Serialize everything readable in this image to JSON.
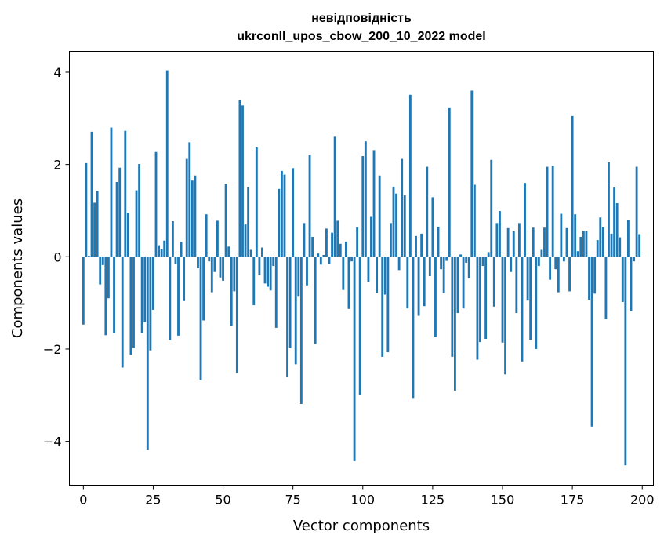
{
  "chart_data": {
    "type": "bar",
    "title_line1": "невідповідність",
    "title_line2": "ukrconll_upos_cbow_200_10_2022 model",
    "xlabel": "Vector components",
    "ylabel": "Components values",
    "xlim": [
      -5,
      204
    ],
    "ylim": [
      -4.95,
      4.45
    ],
    "xticks": [
      0,
      25,
      50,
      75,
      100,
      125,
      150,
      175,
      200
    ],
    "xtick_labels": [
      "0",
      "25",
      "50",
      "75",
      "100",
      "125",
      "150",
      "175",
      "200"
    ],
    "yticks": [
      -4,
      -2,
      0,
      2,
      4
    ],
    "ytick_labels": [
      "−4",
      "−2",
      "0",
      "2",
      "4"
    ],
    "bar_color": "#1f77b4",
    "x": [
      0,
      1,
      2,
      3,
      4,
      5,
      6,
      7,
      8,
      9,
      10,
      11,
      12,
      13,
      14,
      15,
      16,
      17,
      18,
      19,
      20,
      21,
      22,
      23,
      24,
      25,
      26,
      27,
      28,
      29,
      30,
      31,
      32,
      33,
      34,
      35,
      36,
      37,
      38,
      39,
      40,
      41,
      42,
      43,
      44,
      45,
      46,
      47,
      48,
      49,
      50,
      51,
      52,
      53,
      54,
      55,
      56,
      57,
      58,
      59,
      60,
      61,
      62,
      63,
      64,
      65,
      66,
      67,
      68,
      69,
      70,
      71,
      72,
      73,
      74,
      75,
      76,
      77,
      78,
      79,
      80,
      81,
      82,
      83,
      84,
      85,
      86,
      87,
      88,
      89,
      90,
      91,
      92,
      93,
      94,
      95,
      96,
      97,
      98,
      99,
      100,
      101,
      102,
      103,
      104,
      105,
      106,
      107,
      108,
      109,
      110,
      111,
      112,
      113,
      114,
      115,
      116,
      117,
      118,
      119,
      120,
      121,
      122,
      123,
      124,
      125,
      126,
      127,
      128,
      129,
      130,
      131,
      132,
      133,
      134,
      135,
      136,
      137,
      138,
      139,
      140,
      141,
      142,
      143,
      144,
      145,
      146,
      147,
      148,
      149,
      150,
      151,
      152,
      153,
      154,
      155,
      156,
      157,
      158,
      159,
      160,
      161,
      162,
      163,
      164,
      165,
      166,
      167,
      168,
      169,
      170,
      171,
      172,
      173,
      174,
      175,
      176,
      177,
      178,
      179,
      180,
      181,
      182,
      183,
      184,
      185,
      186,
      187,
      188,
      189,
      190,
      191,
      192,
      193,
      194,
      195,
      196,
      197,
      198,
      199
    ],
    "values": [
      -1.47,
      2.03,
      0.02,
      2.71,
      1.17,
      1.43,
      -0.6,
      -0.18,
      -1.7,
      -0.9,
      2.8,
      -1.65,
      1.62,
      1.93,
      -2.4,
      2.73,
      0.95,
      -2.12,
      -1.98,
      1.44,
      2.01,
      -1.65,
      -1.42,
      -4.18,
      -2.03,
      -1.15,
      2.27,
      0.25,
      0.16,
      0.35,
      4.04,
      -1.81,
      0.77,
      -0.15,
      -1.71,
      0.32,
      -0.96,
      2.12,
      2.48,
      1.65,
      1.76,
      -0.25,
      -2.68,
      -1.38,
      0.92,
      -0.1,
      -0.77,
      -0.33,
      0.78,
      -0.45,
      -0.52,
      1.58,
      0.22,
      -1.5,
      -0.75,
      -2.52,
      3.39,
      3.28,
      0.7,
      1.51,
      0.15,
      -1.05,
      2.37,
      -0.4,
      0.2,
      -0.58,
      -0.65,
      -0.73,
      -0.2,
      -1.54,
      1.47,
      1.86,
      1.78,
      -2.6,
      -1.98,
      1.92,
      -2.33,
      -0.85,
      -3.19,
      0.73,
      -0.62,
      2.2,
      0.43,
      -1.89,
      0.07,
      -0.17,
      0.04,
      0.61,
      -0.15,
      0.52,
      2.6,
      0.78,
      0.28,
      -0.72,
      0.33,
      -1.13,
      -0.1,
      -4.43,
      0.64,
      -3.0,
      2.18,
      2.5,
      -0.54,
      0.88,
      2.31,
      -0.78,
      1.76,
      -2.17,
      -0.82,
      -2.07,
      0.73,
      1.52,
      1.37,
      -0.29,
      2.12,
      1.33,
      -1.12,
      3.51,
      -3.06,
      0.45,
      -1.28,
      0.5,
      -1.07,
      1.95,
      -0.42,
      1.29,
      -1.74,
      0.65,
      -0.27,
      -0.79,
      -0.09,
      3.22,
      -2.17,
      -2.9,
      -1.22,
      0.05,
      -1.12,
      -0.13,
      -0.47,
      3.6,
      1.56,
      -2.23,
      -1.85,
      -0.2,
      -1.78,
      0.1,
      2.1,
      -1.08,
      0.73,
      0.99,
      -1.86,
      -2.55,
      0.62,
      -0.33,
      0.55,
      -1.22,
      0.73,
      -2.27,
      1.6,
      -0.95,
      -1.8,
      0.63,
      -2.0,
      -0.2,
      0.15,
      0.63,
      1.95,
      -0.5,
      1.97,
      -0.27,
      -0.77,
      0.93,
      -0.1,
      0.62,
      -0.75,
      3.05,
      0.92,
      0.12,
      0.43,
      0.56,
      0.55,
      -0.93,
      -3.68,
      -0.8,
      0.36,
      0.85,
      0.64,
      -1.35,
      2.05,
      0.5,
      1.5,
      1.16,
      0.42,
      -0.98,
      -4.52,
      0.8,
      -1.18,
      -0.1,
      1.95,
      0.49
    ]
  }
}
